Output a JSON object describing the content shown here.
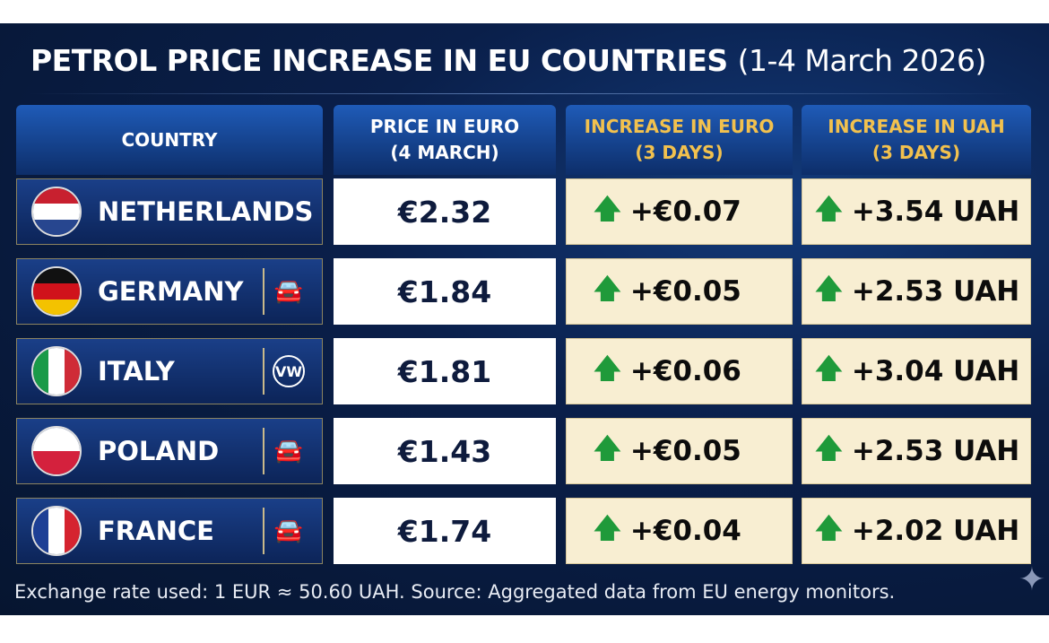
{
  "title": "PETROL PRICE INCREASE IN EU COUNTRIES",
  "subtitle": "(1-4 March 2026)",
  "chart_data": {
    "type": "table",
    "title": "PETROL PRICE INCREASE IN EU COUNTRIES (1-4 March 2026)",
    "columns": [
      "COUNTRY",
      "PRICE IN EURO (4 MARCH)",
      "INCREASE IN EURO (3 DAYS)",
      "INCREASE IN UAH (3 DAYS)"
    ],
    "headers": {
      "c0": "COUNTRY",
      "c1a": "PRICE IN EURO",
      "c1b": "(4 MARCH)",
      "c2a": "INCREASE IN EURO",
      "c2b": "(3 DAYS)",
      "c3a": "INCREASE IN UAH",
      "c3b": "(3 DAYS)"
    },
    "rows": [
      {
        "country": "NETHERLANDS",
        "price": "€2.32",
        "inc_eur": "+€0.07",
        "inc_uah": "+3.54 UAH",
        "brand": ""
      },
      {
        "country": "GERMANY",
        "price": "€1.84",
        "inc_eur": "+€0.05",
        "inc_uah": "+2.53 UAH",
        "brand": "car-icon"
      },
      {
        "country": "ITALY",
        "price": "€1.81",
        "inc_eur": "+€0.06",
        "inc_uah": "+3.04 UAH",
        "brand": "vw-logo"
      },
      {
        "country": "POLAND",
        "price": "€1.43",
        "inc_eur": "+€0.05",
        "inc_uah": "+2.53 UAH",
        "brand": "car-icon"
      },
      {
        "country": "FRANCE",
        "price": "€1.74",
        "inc_eur": "+€0.04",
        "inc_uah": "+2.02 UAH",
        "brand": "car-icon"
      }
    ]
  },
  "footer": "Exchange rate used: 1 EUR ≈ 50.60 UAH. Source: Aggregated data from EU energy monitors.",
  "colors": {
    "up": "#1f9a3a",
    "gold": "#f2c14e"
  }
}
